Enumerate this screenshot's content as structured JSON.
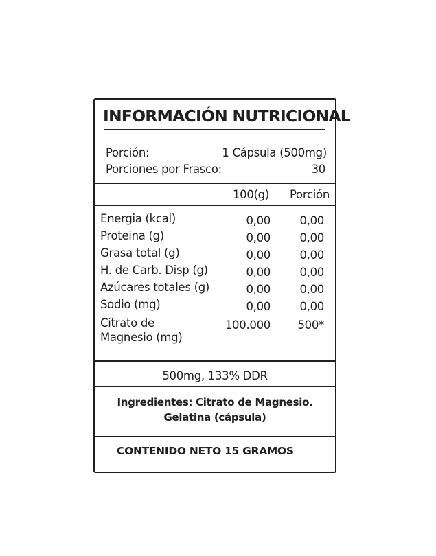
{
  "title": "INFORMACIÓN NUTRICIONAL",
  "serving": {
    "label": "Porción:",
    "value": "1 Cápsula (500mg)"
  },
  "servings_per_container": {
    "label": "Porciones por Frasco:",
    "value": "30"
  },
  "columns": [
    "100(g)",
    "Porción"
  ],
  "rows": [
    {
      "name": "Energia  (kcal)",
      "per100": "0,00",
      "portion": "0,00"
    },
    {
      "name": "Proteina (g)",
      "per100": "0,00",
      "portion": "0,00"
    },
    {
      "name": "Grasa total (g)",
      "per100": "0,00",
      "portion": "0,00"
    },
    {
      "name": "H. de Carb. Disp (g)",
      "per100": "0,00",
      "portion": "0,00"
    },
    {
      "name": "Azúcares totales (g)",
      "per100": "0,00",
      "portion": "0,00"
    },
    {
      "name": "Sodio (mg)",
      "per100": "0,00",
      "portion": "0,00"
    },
    {
      "name": "Citrato de",
      "name2": "Magnesio (mg)",
      "per100": "100.000",
      "portion": "500*"
    }
  ],
  "ddr": "500mg, 133% DDR",
  "ingredients": [
    "Ingredientes: Citrato de Magnesio.",
    "Gelatina (cápsula)"
  ],
  "net_content": "CONTENIDO NETO 15 GRAMOS"
}
